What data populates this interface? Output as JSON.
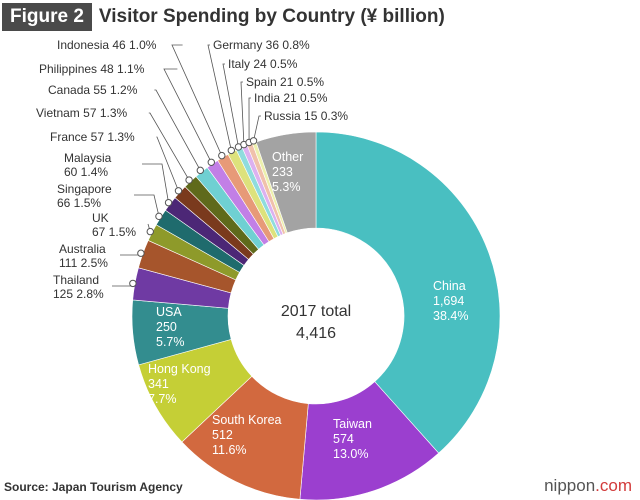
{
  "header": {
    "badge": "Figure 2",
    "title": "Visitor Spending by Country (¥ billion)"
  },
  "center": {
    "line1": "2017 total",
    "line2": "4,416"
  },
  "footer": {
    "source": "Source: Japan Tourism Agency",
    "brand_name": "nippon",
    "brand_domain": ".com"
  },
  "chart_data": {
    "type": "pie",
    "variant": "donut",
    "title": "Visitor Spending by Country (¥ billion)",
    "total_label": "2017 total",
    "total": "4,416",
    "slices": [
      {
        "name": "China",
        "value": 1694,
        "value_label": "1,694",
        "percent": "38.4%",
        "color": "#49bfc1"
      },
      {
        "name": "Taiwan",
        "value": 574,
        "value_label": "574",
        "percent": "13.0%",
        "color": "#9b3fcf"
      },
      {
        "name": "South Korea",
        "value": 512,
        "value_label": "512",
        "percent": "11.6%",
        "color": "#d2693f"
      },
      {
        "name": "Hong Kong",
        "value": 341,
        "value_label": "341",
        "percent": "7.7%",
        "color": "#c5cf36"
      },
      {
        "name": "USA",
        "value": 250,
        "value_label": "250",
        "percent": "5.7%",
        "color": "#338d8f"
      },
      {
        "name": "Thailand",
        "value": 125,
        "value_label": "125",
        "percent": "2.8%",
        "color": "#6f3aa3"
      },
      {
        "name": "Australia",
        "value": 111,
        "value_label": "111",
        "percent": "2.5%",
        "color": "#a6552c"
      },
      {
        "name": "UK",
        "value": 67,
        "value_label": "67",
        "percent": "1.5%",
        "color": "#8e9a2a"
      },
      {
        "name": "Singapore",
        "value": 66,
        "value_label": "66",
        "percent": "1.5%",
        "color": "#1f6b6d"
      },
      {
        "name": "Malaysia",
        "value": 60,
        "value_label": "60",
        "percent": "1.4%",
        "color": "#4c2776"
      },
      {
        "name": "France",
        "value": 57,
        "value_label": "57",
        "percent": "1.3%",
        "color": "#7a3a1d"
      },
      {
        "name": "Vietnam",
        "value": 57,
        "value_label": "57",
        "percent": "1.3%",
        "color": "#5f6a1b"
      },
      {
        "name": "Canada",
        "value": 55,
        "value_label": "55",
        "percent": "1.2%",
        "color": "#6fd0d2"
      },
      {
        "name": "Philippines",
        "value": 48,
        "value_label": "48",
        "percent": "1.1%",
        "color": "#c27fe6"
      },
      {
        "name": "Indonesia",
        "value": 46,
        "value_label": "46",
        "percent": "1.0%",
        "color": "#e79a78"
      },
      {
        "name": "Germany",
        "value": 36,
        "value_label": "36",
        "percent": "0.8%",
        "color": "#dde27c"
      },
      {
        "name": "Italy",
        "value": 24,
        "value_label": "24",
        "percent": "0.5%",
        "color": "#8fdcdd"
      },
      {
        "name": "Spain",
        "value": 21,
        "value_label": "21",
        "percent": "0.5%",
        "color": "#dcb1f0"
      },
      {
        "name": "India",
        "value": 21,
        "value_label": "21",
        "percent": "0.5%",
        "color": "#f0c1ab"
      },
      {
        "name": "Russia",
        "value": 15,
        "value_label": "15",
        "percent": "0.3%",
        "color": "#edf0ad"
      },
      {
        "name": "Other",
        "value": 233,
        "value_label": "233",
        "percent": "5.3%",
        "color": "#a3a3a3"
      }
    ]
  }
}
